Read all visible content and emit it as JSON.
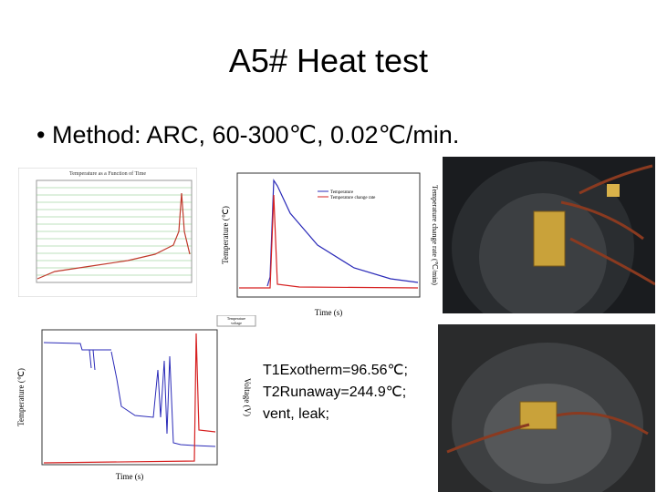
{
  "slide": {
    "title": "A5# Heat test",
    "bullet": "Method: ARC, 60-300℃, 0.02℃/min.",
    "note": [
      "T1Exotherm=96.56℃;",
      "T2Runaway=244.9℃;",
      "vent, leak;"
    ],
    "figure1": {
      "title": "Temperature as a Function of Time"
    },
    "figure2": {
      "y_label": "Temperature (℃)",
      "y2_label": "Temperature change rate (℃/min)",
      "x_label": "Time (s)",
      "legend": [
        "Temperature",
        "Temperature change rate"
      ]
    },
    "figure3": {
      "y_label": "Temperature (℃)",
      "y2_label": "Voltage (V)",
      "x_label": "Time (s)",
      "legend": [
        "Temperature",
        "voltage"
      ]
    }
  }
}
